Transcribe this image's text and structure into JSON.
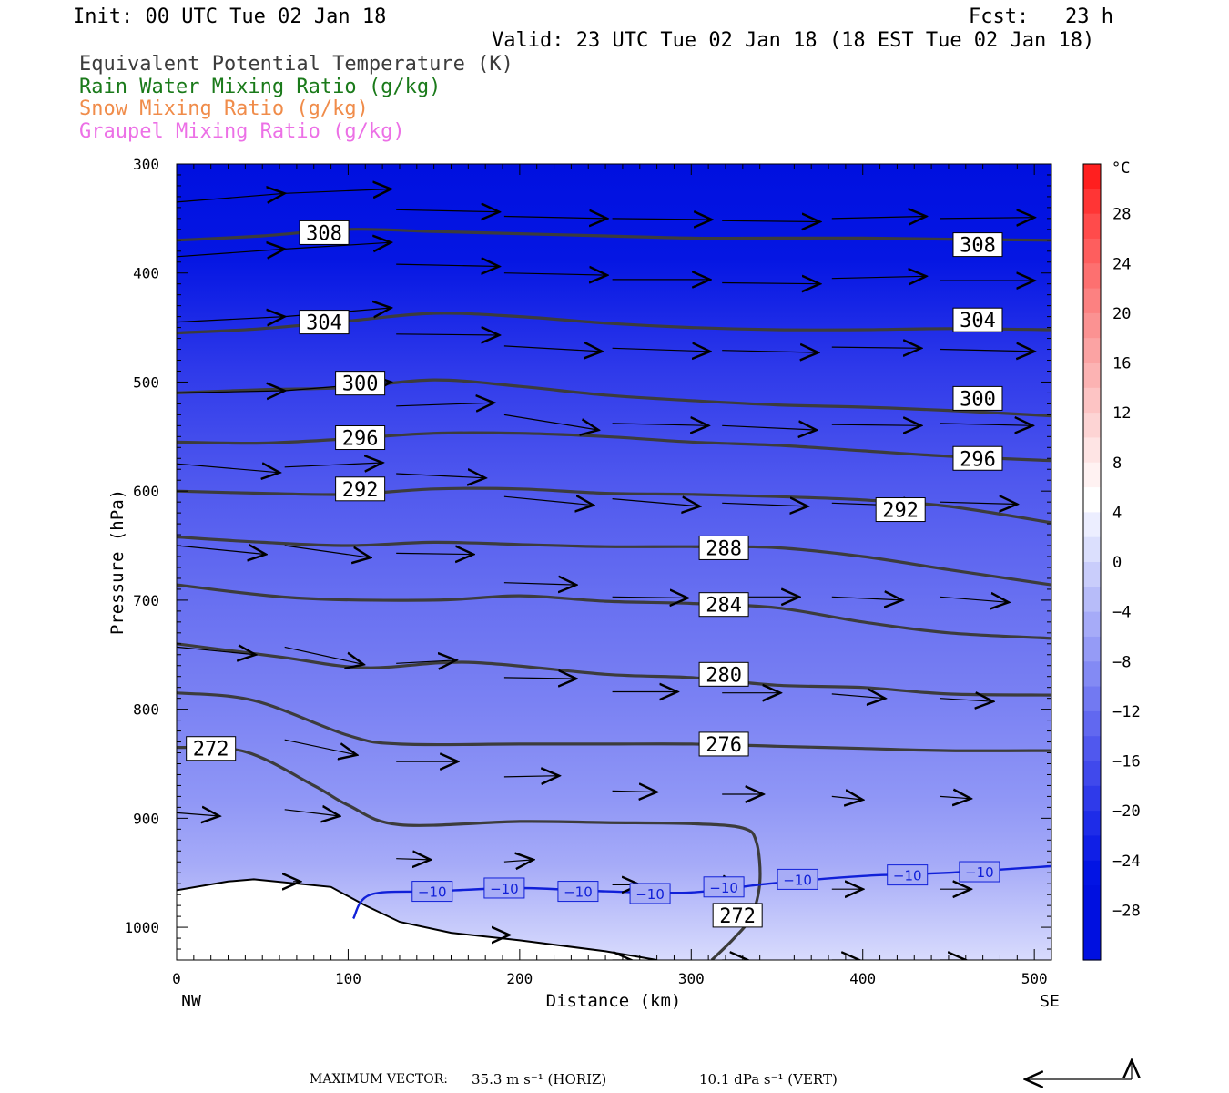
{
  "header": {
    "init": "Init: 00 UTC Tue 02 Jan 18",
    "fcst": "Fcst:   23 h",
    "valid": "Valid: 23 UTC Tue 02 Jan 18 (18 EST Tue 02 Jan 18)"
  },
  "legend": [
    {
      "label": "Equivalent Potential Temperature (K)",
      "color": "#3c3c3c"
    },
    {
      "label": "Rain Water Mixing Ratio (g/kg)",
      "color": "#1a7a1a"
    },
    {
      "label": "Snow Mixing Ratio (g/kg)",
      "color": "#f08c4a"
    },
    {
      "label": "Graupel Mixing Ratio (g/kg)",
      "color": "#ec70e6"
    }
  ],
  "chart_data": {
    "type": "contour",
    "xlabel": "Distance (km)",
    "ylabel": "Pressure (hPa)",
    "xlim": [
      0,
      510
    ],
    "ylim": [
      1030,
      300
    ],
    "x_ticks": [
      0,
      100,
      200,
      300,
      400,
      500
    ],
    "y_ticks": [
      300,
      400,
      500,
      600,
      700,
      800,
      900,
      1000
    ],
    "x_end_labels": {
      "left": "NW",
      "right": "SE"
    },
    "colorbar": {
      "unit": "°C",
      "labels": [
        "28",
        "24",
        "20",
        "16",
        "12",
        "8",
        "4",
        "0",
        "−4",
        "−8",
        "−12",
        "−16",
        "−20",
        "−24",
        "−28"
      ],
      "label_values": [
        28,
        24,
        20,
        16,
        12,
        8,
        4,
        0,
        -4,
        -8,
        -12,
        -16,
        -20,
        -24,
        -28
      ],
      "levels": [
        32,
        30,
        28,
        26,
        24,
        22,
        20,
        18,
        16,
        14,
        12,
        10,
        8,
        6,
        4,
        2,
        0,
        -2,
        -4,
        -6,
        -8,
        -10,
        -12,
        -14,
        -16,
        -18,
        -20,
        -22,
        -24,
        -26,
        -28,
        -30,
        -32
      ],
      "colors": [
        "#ff1f1f",
        "#ff3535",
        "#ff4b4b",
        "#fe5e5e",
        "#fd7070",
        "#fc8181",
        "#fb9292",
        "#fba3a3",
        "#fcb3b3",
        "#fdc4c4",
        "#fdd4d4",
        "#fee4e4",
        "#fff2f2",
        "#ffffff",
        "#eceeff",
        "#dbdffd",
        "#c9cdfb",
        "#b7bcf9",
        "#a6abf8",
        "#959bf6",
        "#838af4",
        "#7279f2",
        "#6168f0",
        "#5058ee",
        "#4049ec",
        "#2f3aea",
        "#1e2ce8",
        "#101fe6",
        "#0214e4",
        "#0010e0",
        "#0010e0",
        "#0010e0"
      ]
    },
    "theta_e": [
      {
        "value": 308,
        "points": [
          [
            0,
            370
          ],
          [
            50,
            366
          ],
          [
            100,
            360
          ],
          [
            150,
            362
          ],
          [
            200,
            364
          ],
          [
            250,
            366
          ],
          [
            300,
            368
          ],
          [
            350,
            368
          ],
          [
            400,
            368
          ],
          [
            450,
            369
          ],
          [
            510,
            370
          ]
        ],
        "labels": [
          [
            86,
            363
          ],
          [
            467,
            374
          ]
        ]
      },
      {
        "value": 304,
        "points": [
          [
            0,
            455
          ],
          [
            50,
            451
          ],
          [
            100,
            444
          ],
          [
            150,
            437
          ],
          [
            200,
            440
          ],
          [
            250,
            446
          ],
          [
            300,
            450
          ],
          [
            350,
            452
          ],
          [
            400,
            452
          ],
          [
            450,
            451
          ],
          [
            510,
            452
          ]
        ],
        "labels": [
          [
            86,
            445
          ],
          [
            467,
            443
          ]
        ]
      },
      {
        "value": 300,
        "points": [
          [
            0,
            510
          ],
          [
            50,
            507
          ],
          [
            100,
            505
          ],
          [
            150,
            498
          ],
          [
            200,
            504
          ],
          [
            250,
            512
          ],
          [
            300,
            517
          ],
          [
            350,
            521
          ],
          [
            400,
            523
          ],
          [
            450,
            526
          ],
          [
            510,
            531
          ]
        ],
        "labels": [
          [
            107,
            501
          ],
          [
            467,
            515
          ]
        ]
      },
      {
        "value": 296,
        "points": [
          [
            0,
            555
          ],
          [
            50,
            556
          ],
          [
            100,
            552
          ],
          [
            150,
            547
          ],
          [
            200,
            547
          ],
          [
            250,
            550
          ],
          [
            300,
            555
          ],
          [
            350,
            558
          ],
          [
            400,
            563
          ],
          [
            450,
            568
          ],
          [
            510,
            572
          ]
        ],
        "labels": [
          [
            107,
            551
          ],
          [
            467,
            570
          ]
        ]
      },
      {
        "value": 292,
        "points": [
          [
            0,
            600
          ],
          [
            50,
            602
          ],
          [
            100,
            603
          ],
          [
            150,
            598
          ],
          [
            200,
            598
          ],
          [
            250,
            602
          ],
          [
            300,
            603
          ],
          [
            350,
            605
          ],
          [
            400,
            608
          ],
          [
            450,
            614
          ],
          [
            510,
            629
          ]
        ],
        "labels": [
          [
            107,
            598
          ],
          [
            422,
            617
          ]
        ]
      },
      {
        "value": 288,
        "points": [
          [
            0,
            642
          ],
          [
            50,
            647
          ],
          [
            100,
            650
          ],
          [
            150,
            647
          ],
          [
            200,
            649
          ],
          [
            250,
            651
          ],
          [
            300,
            651
          ],
          [
            350,
            652
          ],
          [
            400,
            660
          ],
          [
            450,
            672
          ],
          [
            510,
            686
          ]
        ],
        "labels": [
          [
            319,
            652
          ]
        ]
      },
      {
        "value": 284,
        "points": [
          [
            0,
            686
          ],
          [
            70,
            698
          ],
          [
            150,
            700
          ],
          [
            200,
            696
          ],
          [
            250,
            701
          ],
          [
            300,
            703
          ],
          [
            350,
            707
          ],
          [
            400,
            720
          ],
          [
            450,
            730
          ],
          [
            510,
            735
          ]
        ],
        "labels": [
          [
            319,
            704
          ]
        ]
      },
      {
        "value": 280,
        "points": [
          [
            0,
            740
          ],
          [
            60,
            752
          ],
          [
            110,
            762
          ],
          [
            170,
            757
          ],
          [
            250,
            768
          ],
          [
            300,
            771
          ],
          [
            350,
            778
          ],
          [
            400,
            780
          ],
          [
            450,
            786
          ],
          [
            510,
            787
          ]
        ],
        "labels": [
          [
            319,
            768
          ]
        ]
      },
      {
        "value": 276,
        "points": [
          [
            0,
            785
          ],
          [
            45,
            792
          ],
          [
            100,
            824
          ],
          [
            130,
            832
          ],
          [
            200,
            832
          ],
          [
            250,
            832
          ],
          [
            300,
            832
          ],
          [
            350,
            834
          ],
          [
            400,
            836
          ],
          [
            450,
            838
          ],
          [
            510,
            838
          ]
        ],
        "labels": [
          [
            319,
            832
          ]
        ]
      },
      {
        "value": 272,
        "points": [
          [
            0,
            835
          ],
          [
            40,
            839
          ],
          [
            80,
            870
          ],
          [
            100,
            888
          ],
          [
            130,
            906
          ],
          [
            200,
            903
          ],
          [
            250,
            904
          ],
          [
            300,
            905
          ],
          [
            330,
            909
          ],
          [
            338,
            922
          ],
          [
            340,
            958
          ],
          [
            335,
            990
          ],
          [
            325,
            1010
          ],
          [
            312,
            1030
          ]
        ],
        "labels": [
          [
            20,
            836
          ],
          [
            327,
            989
          ]
        ]
      }
    ],
    "rain_water": [
      {
        "value": -10,
        "color": "#1020d8",
        "points": [
          [
            103,
            992
          ],
          [
            113,
            970
          ],
          [
            150,
            967
          ],
          [
            200,
            964
          ],
          [
            250,
            967
          ],
          [
            300,
            968
          ],
          [
            345,
            960
          ],
          [
            400,
            953
          ],
          [
            450,
            950
          ],
          [
            510,
            944
          ]
        ],
        "labels": [
          [
            149,
            967
          ],
          [
            191,
            964
          ],
          [
            234,
            967
          ],
          [
            276,
            969
          ],
          [
            319,
            963
          ],
          [
            362,
            956
          ],
          [
            426,
            952
          ],
          [
            468,
            949
          ]
        ]
      }
    ],
    "terrain": [
      [
        0,
        966
      ],
      [
        30,
        958
      ],
      [
        45,
        956
      ],
      [
        90,
        963
      ],
      [
        110,
        980
      ],
      [
        130,
        995
      ],
      [
        160,
        1005
      ],
      [
        200,
        1012
      ],
      [
        250,
        1022
      ],
      [
        280,
        1030
      ]
    ],
    "wind_vectors": [
      [
        0,
        335,
        63,
        327
      ],
      [
        63,
        327,
        125,
        323
      ],
      [
        0,
        385,
        63,
        378
      ],
      [
        63,
        378,
        125,
        372
      ],
      [
        0,
        445,
        63,
        440
      ],
      [
        63,
        440,
        125,
        432
      ],
      [
        0,
        510,
        63,
        508
      ],
      [
        63,
        508,
        125,
        500
      ],
      [
        0,
        575,
        60,
        583
      ],
      [
        63,
        578,
        120,
        574
      ],
      [
        0,
        650,
        52,
        658
      ],
      [
        63,
        650,
        113,
        661
      ],
      [
        0,
        743,
        46,
        750
      ],
      [
        63,
        743,
        109,
        759
      ],
      [
        0,
        895,
        25,
        898
      ],
      [
        63,
        892,
        95,
        898
      ],
      [
        63,
        828,
        105,
        842
      ],
      [
        128,
        342,
        188,
        344
      ],
      [
        191,
        348,
        251,
        350
      ],
      [
        254,
        350,
        312,
        351
      ],
      [
        318,
        352,
        375,
        353
      ],
      [
        382,
        350,
        437,
        348
      ],
      [
        445,
        350,
        500,
        349
      ],
      [
        128,
        392,
        188,
        394
      ],
      [
        191,
        400,
        251,
        402
      ],
      [
        254,
        406,
        311,
        406
      ],
      [
        318,
        409,
        375,
        410
      ],
      [
        382,
        405,
        437,
        403
      ],
      [
        445,
        407,
        500,
        407
      ],
      [
        128,
        456,
        188,
        457
      ],
      [
        191,
        467,
        248,
        472
      ],
      [
        254,
        469,
        311,
        472
      ],
      [
        318,
        471,
        374,
        473
      ],
      [
        382,
        468,
        434,
        469
      ],
      [
        445,
        470,
        500,
        472
      ],
      [
        128,
        522,
        185,
        519
      ],
      [
        191,
        530,
        246,
        544
      ],
      [
        254,
        538,
        310,
        540
      ],
      [
        318,
        540,
        373,
        544
      ],
      [
        382,
        539,
        434,
        540
      ],
      [
        445,
        538,
        499,
        540
      ],
      [
        128,
        584,
        180,
        588
      ],
      [
        191,
        605,
        243,
        613
      ],
      [
        254,
        607,
        305,
        614
      ],
      [
        318,
        611,
        368,
        614
      ],
      [
        382,
        611,
        434,
        614
      ],
      [
        445,
        610,
        490,
        612
      ],
      [
        128,
        657,
        173,
        658
      ],
      [
        191,
        684,
        233,
        686
      ],
      [
        254,
        697,
        298,
        698
      ],
      [
        318,
        697,
        363,
        697
      ],
      [
        382,
        697,
        423,
        700
      ],
      [
        445,
        697,
        485,
        702
      ],
      [
        128,
        758,
        163,
        755
      ],
      [
        191,
        771,
        233,
        772
      ],
      [
        254,
        784,
        292,
        784
      ],
      [
        318,
        785,
        352,
        785
      ],
      [
        382,
        786,
        413,
        790
      ],
      [
        445,
        790,
        476,
        793
      ],
      [
        128,
        848,
        164,
        848
      ],
      [
        191,
        862,
        223,
        861
      ],
      [
        254,
        875,
        280,
        876
      ],
      [
        318,
        878,
        342,
        878
      ],
      [
        382,
        880,
        400,
        883
      ],
      [
        445,
        880,
        463,
        882
      ],
      [
        191,
        940,
        208,
        938
      ],
      [
        254,
        961,
        270,
        961
      ],
      [
        318,
        960,
        328,
        963
      ],
      [
        382,
        965,
        400,
        965
      ],
      [
        445,
        965,
        463,
        965
      ],
      [
        128,
        937,
        148,
        938
      ],
      [
        254,
        1030,
        265,
        1030
      ],
      [
        318,
        1030,
        333,
        1030
      ],
      [
        382,
        1030,
        398,
        1030
      ],
      [
        445,
        1030,
        460,
        1030
      ],
      [
        68,
        958,
        72,
        958
      ],
      [
        191,
        1007,
        194,
        1007
      ]
    ]
  },
  "footer": {
    "label": "MAXIMUM VECTOR:",
    "horiz": "35.3 m s⁻¹ (HORIZ)",
    "vert": "10.1 dPa s⁻¹ (VERT)"
  }
}
